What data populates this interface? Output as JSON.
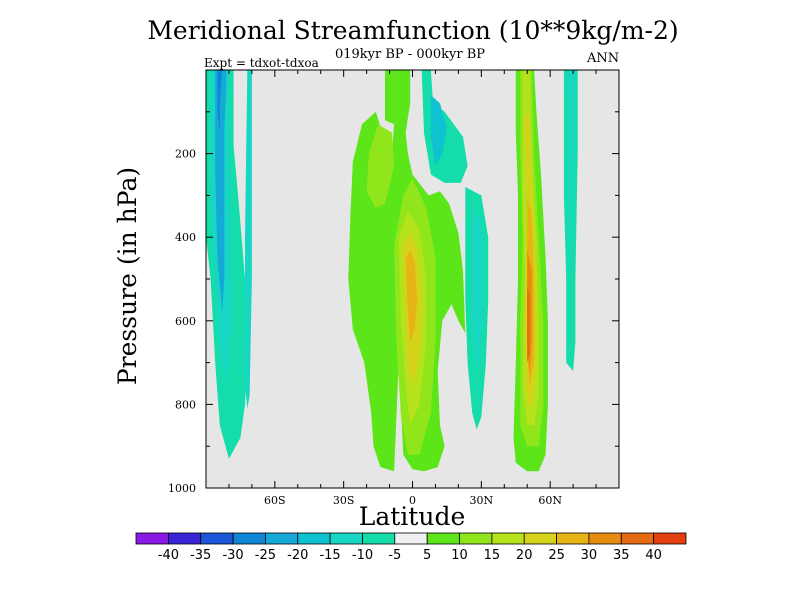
{
  "chart_data": {
    "type": "heatmap",
    "title": "Meridional Streamfunction (10**9kg/m-2)",
    "subtitle": "019kyr BP - 000kyr BP",
    "left_label": "Expt = tdxot-tdxoa",
    "right_label": "ANN",
    "xlabel": "Latitude",
    "ylabel": "Pressure (in hPa)",
    "xlim": [
      -90,
      90
    ],
    "ylim": [
      1000,
      0
    ],
    "x_ticks": [
      {
        "value": -60,
        "label": "60S"
      },
      {
        "value": -30,
        "label": "30S"
      },
      {
        "value": 0,
        "label": "0"
      },
      {
        "value": 30,
        "label": "30N"
      },
      {
        "value": 60,
        "label": "60N"
      }
    ],
    "y_ticks": [
      {
        "value": 200,
        "label": "200"
      },
      {
        "value": 400,
        "label": "400"
      },
      {
        "value": 600,
        "label": "600"
      },
      {
        "value": 800,
        "label": "800"
      },
      {
        "value": 1000,
        "label": "1000"
      }
    ],
    "background_color": "#e6e6e6",
    "colorbar": {
      "levels": [
        "-40",
        "-35",
        "-30",
        "-25",
        "-20",
        "-15",
        "-10",
        "-5",
        "5",
        "10",
        "15",
        "20",
        "25",
        "30",
        "35",
        "40"
      ],
      "colors": [
        "#8a19e6",
        "#3a26d8",
        "#1c55d8",
        "#0f85d6",
        "#16a9d8",
        "#0fc2cf",
        "#18d6c4",
        "#14dcab",
        "#f0f0f0",
        "#5ce61a",
        "#90e61a",
        "#b6e21c",
        "#d6d21c",
        "#e6b414",
        "#e68c10",
        "#e66a12",
        "#e2400e"
      ]
    },
    "contours": [
      {
        "name": "sh_band_outer",
        "color": "#14dcab",
        "points": [
          [
            -90,
            0
          ],
          [
            -78,
            0
          ],
          [
            -78,
            180
          ],
          [
            -76,
            300
          ],
          [
            -73,
            500
          ],
          [
            -72,
            700
          ],
          [
            -73,
            800
          ],
          [
            -75,
            880
          ],
          [
            -80,
            930
          ],
          [
            -84,
            850
          ],
          [
            -86,
            700
          ],
          [
            -88,
            500
          ],
          [
            -90,
            400
          ]
        ]
      },
      {
        "name": "sh_band_mid",
        "color": "#18d6c4",
        "points": [
          [
            -88,
            0
          ],
          [
            -80,
            0
          ],
          [
            -80,
            200
          ],
          [
            -79,
            400
          ],
          [
            -79,
            600
          ],
          [
            -80,
            700
          ],
          [
            -82,
            750
          ],
          [
            -84,
            650
          ],
          [
            -86,
            500
          ],
          [
            -88,
            300
          ]
        ]
      },
      {
        "name": "sh_band_inner",
        "color": "#16a9d8",
        "points": [
          [
            -86,
            0
          ],
          [
            -81,
            0
          ],
          [
            -82,
            150
          ],
          [
            -82,
            400
          ],
          [
            -82,
            500
          ],
          [
            -83,
            580
          ],
          [
            -85,
            450
          ],
          [
            -86,
            250
          ]
        ]
      },
      {
        "name": "sh_core",
        "color": "#0f85d6",
        "points": [
          [
            -85,
            0
          ],
          [
            -83,
            0
          ],
          [
            -84,
            80
          ],
          [
            -84,
            150
          ],
          [
            -85,
            100
          ]
        ]
      },
      {
        "name": "sh_thin_band",
        "color": "#18d6c4",
        "points": [
          [
            -72,
            0
          ],
          [
            -70,
            0
          ],
          [
            -70,
            300
          ],
          [
            -70,
            500
          ],
          [
            -71,
            780
          ],
          [
            -72,
            810
          ],
          [
            -73,
            750
          ],
          [
            -73,
            400
          ]
        ]
      },
      {
        "name": "tropics_main",
        "color": "#5ce61a",
        "points": [
          [
            -12,
            0
          ],
          [
            -8,
            0
          ],
          [
            -8,
            130
          ],
          [
            -9,
            200
          ],
          [
            -12,
            170
          ],
          [
            -16,
            100
          ],
          [
            -22,
            130
          ],
          [
            -26,
            220
          ],
          [
            -27,
            340
          ],
          [
            -28,
            500
          ],
          [
            -26,
            620
          ],
          [
            -21,
            700
          ],
          [
            -18,
            820
          ],
          [
            -17,
            900
          ],
          [
            -14,
            950
          ],
          [
            -8,
            960
          ],
          [
            -6,
            700
          ],
          [
            -4,
            920
          ],
          [
            0,
            955
          ],
          [
            5,
            960
          ],
          [
            11,
            950
          ],
          [
            14,
            900
          ],
          [
            12,
            850
          ],
          [
            11,
            720
          ],
          [
            13,
            600
          ],
          [
            17,
            560
          ],
          [
            20,
            600
          ],
          [
            23,
            630
          ],
          [
            22,
            480
          ],
          [
            20,
            390
          ],
          [
            16,
            320
          ],
          [
            12,
            290
          ],
          [
            7,
            300
          ],
          [
            0,
            250
          ],
          [
            -2,
            200
          ],
          [
            -3,
            150
          ],
          [
            -1,
            80
          ],
          [
            -1,
            0
          ]
        ]
      },
      {
        "name": "tropics_l15_upper",
        "color": "#b6e21c",
        "points": [
          [
            -16,
            190
          ],
          [
            -14,
            160
          ],
          [
            -11,
            175
          ],
          [
            -11,
            230
          ],
          [
            -13,
            270
          ],
          [
            -16,
            260
          ]
        ]
      },
      {
        "name": "tropics_l10_upper",
        "color": "#90e61a",
        "points": [
          [
            -19,
            200
          ],
          [
            -15,
            130
          ],
          [
            -9,
            150
          ],
          [
            -8,
            230
          ],
          [
            -12,
            320
          ],
          [
            -16,
            330
          ],
          [
            -20,
            290
          ]
        ]
      },
      {
        "name": "tropics_l10_lower",
        "color": "#90e61a",
        "points": [
          [
            -8,
            420
          ],
          [
            -4,
            300
          ],
          [
            0,
            260
          ],
          [
            6,
            330
          ],
          [
            10,
            450
          ],
          [
            10,
            650
          ],
          [
            8,
            820
          ],
          [
            3,
            920
          ],
          [
            -2,
            920
          ],
          [
            -5,
            830
          ],
          [
            -7,
            650
          ]
        ]
      },
      {
        "name": "tropics_l15_lower",
        "color": "#b6e21c",
        "points": [
          [
            -6,
            400
          ],
          [
            -2,
            340
          ],
          [
            3,
            380
          ],
          [
            6,
            500
          ],
          [
            6,
            650
          ],
          [
            3,
            800
          ],
          [
            -1,
            850
          ],
          [
            -3,
            750
          ],
          [
            -5,
            600
          ]
        ]
      },
      {
        "name": "tropics_l20",
        "color": "#d6d21c",
        "points": [
          [
            -4,
            420
          ],
          [
            -1,
            390
          ],
          [
            2,
            430
          ],
          [
            4,
            550
          ],
          [
            3,
            680
          ],
          [
            0,
            760
          ],
          [
            -2,
            700
          ],
          [
            -3,
            560
          ]
        ]
      },
      {
        "name": "tropics_l25",
        "color": "#e6b414",
        "points": [
          [
            -3,
            450
          ],
          [
            -1,
            430
          ],
          [
            1,
            460
          ],
          [
            2,
            550
          ],
          [
            1,
            620
          ],
          [
            -1,
            650
          ],
          [
            -2,
            580
          ]
        ]
      },
      {
        "name": "nh_tropics_green",
        "color": "#5ce61a",
        "points": [
          [
            -12,
            0
          ],
          [
            -8,
            0
          ],
          [
            -8,
            130
          ],
          [
            -12,
            120
          ]
        ]
      },
      {
        "name": "eq_cyan",
        "color": "#14dcab",
        "points": [
          [
            4,
            0
          ],
          [
            8,
            0
          ],
          [
            9,
            80
          ],
          [
            14,
            100
          ],
          [
            22,
            160
          ],
          [
            24,
            230
          ],
          [
            21,
            270
          ],
          [
            14,
            270
          ],
          [
            8,
            250
          ],
          [
            5,
            150
          ]
        ]
      },
      {
        "name": "eq_cyan_inner",
        "color": "#0fc2cf",
        "points": [
          [
            8,
            60
          ],
          [
            12,
            80
          ],
          [
            15,
            140
          ],
          [
            13,
            200
          ],
          [
            10,
            230
          ],
          [
            8,
            160
          ]
        ]
      },
      {
        "name": "nh_cyan_band",
        "color": "#14dcab",
        "points": [
          [
            23,
            280
          ],
          [
            30,
            300
          ],
          [
            33,
            400
          ],
          [
            33,
            550
          ],
          [
            32,
            700
          ],
          [
            30,
            830
          ],
          [
            28,
            860
          ],
          [
            26,
            820
          ],
          [
            24,
            700
          ],
          [
            23,
            550
          ]
        ]
      },
      {
        "name": "nh_cyan_inner",
        "color": "#18d6c4",
        "points": [
          [
            26,
            340
          ],
          [
            30,
            360
          ],
          [
            31,
            500
          ],
          [
            30,
            650
          ],
          [
            28,
            720
          ],
          [
            26,
            600
          ]
        ]
      },
      {
        "name": "nh_main",
        "color": "#5ce61a",
        "points": [
          [
            45,
            0
          ],
          [
            53,
            0
          ],
          [
            54,
            100
          ],
          [
            56,
            250
          ],
          [
            58,
            450
          ],
          [
            59,
            600
          ],
          [
            59,
            800
          ],
          [
            58,
            920
          ],
          [
            55,
            960
          ],
          [
            50,
            960
          ],
          [
            45,
            940
          ],
          [
            44,
            880
          ],
          [
            45,
            700
          ],
          [
            46,
            500
          ],
          [
            46,
            300
          ],
          [
            45,
            150
          ]
        ]
      },
      {
        "name": "nh_l10",
        "color": "#90e61a",
        "points": [
          [
            47,
            0
          ],
          [
            52,
            0
          ],
          [
            53,
            200
          ],
          [
            55,
            400
          ],
          [
            57,
            600
          ],
          [
            57,
            800
          ],
          [
            55,
            900
          ],
          [
            50,
            900
          ],
          [
            47,
            850
          ],
          [
            47,
            600
          ],
          [
            48,
            400
          ],
          [
            47,
            200
          ]
        ]
      },
      {
        "name": "nh_l15",
        "color": "#b6e21c",
        "points": [
          [
            48,
            0
          ],
          [
            51,
            0
          ],
          [
            52,
            200
          ],
          [
            54,
            400
          ],
          [
            55,
            600
          ],
          [
            55,
            780
          ],
          [
            53,
            850
          ],
          [
            50,
            850
          ],
          [
            48,
            750
          ],
          [
            49,
            500
          ],
          [
            48,
            300
          ]
        ]
      },
      {
        "name": "nh_l20",
        "color": "#d6d21c",
        "points": [
          [
            49,
            100
          ],
          [
            51,
            120
          ],
          [
            52,
            300
          ],
          [
            54,
            500
          ],
          [
            54,
            700
          ],
          [
            52,
            800
          ],
          [
            50,
            800
          ],
          [
            49,
            600
          ],
          [
            50,
            350
          ]
        ]
      },
      {
        "name": "nh_l25",
        "color": "#e6b414",
        "points": [
          [
            50,
            300
          ],
          [
            52,
            350
          ],
          [
            53,
            500
          ],
          [
            53,
            700
          ],
          [
            51,
            760
          ],
          [
            50,
            650
          ],
          [
            50,
            450
          ]
        ]
      },
      {
        "name": "nh_l30",
        "color": "#e68c10",
        "points": [
          [
            50,
            430
          ],
          [
            52,
            480
          ],
          [
            52,
            650
          ],
          [
            51,
            730
          ],
          [
            50,
            650
          ]
        ]
      },
      {
        "name": "nh_l35",
        "color": "#e66a12",
        "points": [
          [
            50,
            520
          ],
          [
            51,
            540
          ],
          [
            51,
            680
          ],
          [
            50,
            700
          ],
          [
            50,
            600
          ]
        ]
      },
      {
        "name": "nh_cyan_right",
        "color": "#14dcab",
        "points": [
          [
            66,
            0
          ],
          [
            72,
            0
          ],
          [
            72,
            200
          ],
          [
            71,
            500
          ],
          [
            71,
            650
          ],
          [
            70,
            720
          ],
          [
            67,
            700
          ],
          [
            67,
            500
          ],
          [
            66,
            300
          ]
        ]
      },
      {
        "name": "nh_cyan_right_inner",
        "color": "#18d6c4",
        "points": [
          [
            68,
            0
          ],
          [
            71,
            0
          ],
          [
            70,
            250
          ],
          [
            69,
            500
          ],
          [
            68,
            300
          ]
        ]
      }
    ]
  }
}
